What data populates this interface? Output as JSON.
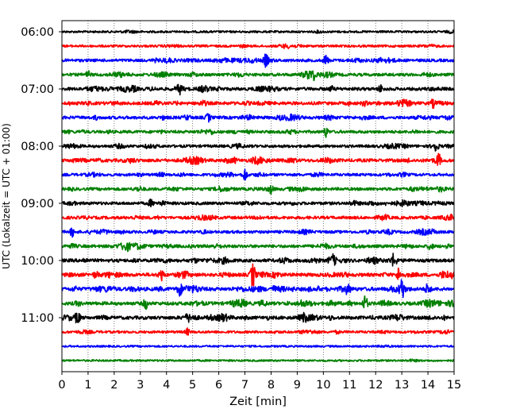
{
  "chart_data": {
    "type": "line",
    "title": "",
    "xlabel": "Zeit  [min]",
    "ylabel": "UTC (Lokalzeit = UTC + 01:00)",
    "xlim": [
      0,
      15
    ],
    "x_ticks": [
      "0",
      "1",
      "2",
      "3",
      "4",
      "5",
      "6",
      "7",
      "8",
      "9",
      "10",
      "11",
      "12",
      "13",
      "14",
      "15"
    ],
    "y_ticks": [
      "06:00",
      "07:00",
      "08:00",
      "09:00",
      "10:00",
      "11:00"
    ],
    "grid": "vertical dotted lines at each minute",
    "trace_colors_cycle": [
      "#000000",
      "#ff0000",
      "#0000ff",
      "#008000"
    ],
    "series": [
      {
        "start": "06:00",
        "color": "#000000",
        "activity": 0.15
      },
      {
        "start": "06:15",
        "color": "#ff0000",
        "activity": 0.25
      },
      {
        "start": "06:30",
        "color": "#0000ff",
        "activity": 0.55
      },
      {
        "start": "06:45",
        "color": "#008000",
        "activity": 0.6
      },
      {
        "start": "07:00",
        "color": "#000000",
        "activity": 0.7
      },
      {
        "start": "07:15",
        "color": "#ff0000",
        "activity": 0.7
      },
      {
        "start": "07:30",
        "color": "#0000ff",
        "activity": 0.65
      },
      {
        "start": "07:45",
        "color": "#008000",
        "activity": 0.55
      },
      {
        "start": "08:00",
        "color": "#000000",
        "activity": 0.5
      },
      {
        "start": "08:15",
        "color": "#ff0000",
        "activity": 0.75
      },
      {
        "start": "08:30",
        "color": "#0000ff",
        "activity": 0.5
      },
      {
        "start": "08:45",
        "color": "#008000",
        "activity": 0.6
      },
      {
        "start": "09:00",
        "color": "#000000",
        "activity": 0.6
      },
      {
        "start": "09:15",
        "color": "#ff0000",
        "activity": 0.6
      },
      {
        "start": "09:30",
        "color": "#0000ff",
        "activity": 0.55
      },
      {
        "start": "09:45",
        "color": "#008000",
        "activity": 0.65
      },
      {
        "start": "10:00",
        "color": "#000000",
        "activity": 0.75
      },
      {
        "start": "10:15",
        "color": "#ff0000",
        "activity": 0.85
      },
      {
        "start": "10:30",
        "color": "#0000ff",
        "activity": 0.95
      },
      {
        "start": "10:45",
        "color": "#008000",
        "activity": 0.8
      },
      {
        "start": "11:00",
        "color": "#000000",
        "activity": 0.8
      },
      {
        "start": "11:15",
        "color": "#ff0000",
        "activity": 0.35
      },
      {
        "start": "11:30",
        "color": "#0000ff",
        "activity": 0.05
      },
      {
        "start": "11:45",
        "color": "#008000",
        "activity": 0.05
      }
    ],
    "spikes": [
      {
        "trace": 2,
        "x": 7.8,
        "amplitude": 0.7
      },
      {
        "trace": 2,
        "x": 10.1,
        "amplitude": 0.6
      },
      {
        "trace": 3,
        "x": 1.0,
        "amplitude": 0.35
      },
      {
        "trace": 4,
        "x": 4.5,
        "amplitude": 0.4
      },
      {
        "trace": 4,
        "x": 12.2,
        "amplitude": 0.4
      },
      {
        "trace": 5,
        "x": 14.2,
        "amplitude": 0.4
      },
      {
        "trace": 6,
        "x": 5.6,
        "amplitude": 0.45
      },
      {
        "trace": 7,
        "x": 10.1,
        "amplitude": 0.55
      },
      {
        "trace": 8,
        "x": 14.3,
        "amplitude": 0.5
      },
      {
        "trace": 9,
        "x": 14.4,
        "amplitude": 0.8
      },
      {
        "trace": 10,
        "x": 7.0,
        "amplitude": 0.7
      },
      {
        "trace": 11,
        "x": 8.0,
        "amplitude": 0.45
      },
      {
        "trace": 12,
        "x": 3.4,
        "amplitude": 0.4
      },
      {
        "trace": 14,
        "x": 0.4,
        "amplitude": 0.5
      },
      {
        "trace": 15,
        "x": 14.1,
        "amplitude": 0.45
      },
      {
        "trace": 16,
        "x": 12.7,
        "amplitude": 0.7
      },
      {
        "trace": 16,
        "x": 10.4,
        "amplitude": 0.5
      },
      {
        "trace": 17,
        "x": 7.3,
        "amplitude": 1.5
      },
      {
        "trace": 17,
        "x": 3.8,
        "amplitude": 0.7
      },
      {
        "trace": 17,
        "x": 12.9,
        "amplitude": 0.9
      },
      {
        "trace": 18,
        "x": 13.0,
        "amplitude": 1.0
      },
      {
        "trace": 18,
        "x": 4.5,
        "amplitude": 0.8
      },
      {
        "trace": 18,
        "x": 14.0,
        "amplitude": 0.7
      },
      {
        "trace": 19,
        "x": 11.6,
        "amplitude": 0.9
      },
      {
        "trace": 19,
        "x": 3.2,
        "amplitude": 0.6
      },
      {
        "trace": 20,
        "x": 0.6,
        "amplitude": 0.8
      },
      {
        "trace": 20,
        "x": 9.3,
        "amplitude": 0.4
      },
      {
        "trace": 21,
        "x": 4.8,
        "amplitude": 0.35
      }
    ]
  }
}
